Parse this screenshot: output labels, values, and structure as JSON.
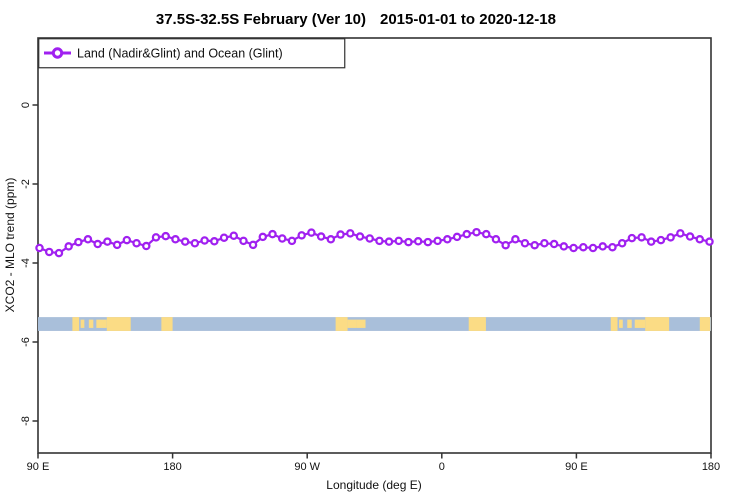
{
  "header": {
    "title_main": "37.5S-32.5S February (Ver 10)",
    "title_dates": "2015-01-01 to 2020-12-18"
  },
  "legend": {
    "label": "Land (Nadir&Glint) and Ocean (Glint)",
    "marker": "open-circle-on-line"
  },
  "axes": {
    "y_label": "XCO2 - MLO trend (ppm)",
    "x_label": "Longitude (deg E)"
  },
  "colors": {
    "series": "#A020F0",
    "ocean": "#A9BFDA",
    "land": "#FBDC85",
    "axis": "#333333"
  },
  "map_strip": {
    "description": "world coastline band for latitude 37.5S-32.5S",
    "y_top_value": -5.37,
    "y_bottom_value": -5.72,
    "land_segments": [
      {
        "start": 113,
        "end": 117.5,
        "coverage": "full"
      },
      {
        "start": 118.5,
        "end": 121,
        "coverage": "partial"
      },
      {
        "start": 124,
        "end": 127,
        "coverage": "partial"
      },
      {
        "start": 129,
        "end": 136,
        "coverage": "partial"
      },
      {
        "start": 136,
        "end": 152,
        "coverage": "full"
      },
      {
        "start": 172.5,
        "end": 180,
        "coverage": "full"
      },
      {
        "start": 289,
        "end": 297,
        "coverage": "full"
      },
      {
        "start": 297,
        "end": 303,
        "coverage": "partial"
      },
      {
        "start": 303,
        "end": 309,
        "coverage": "partial"
      },
      {
        "start": 378,
        "end": 389.5,
        "coverage": "full"
      },
      {
        "start": 473,
        "end": 477.5,
        "coverage": "full"
      },
      {
        "start": 478.5,
        "end": 481,
        "coverage": "partial"
      },
      {
        "start": 484,
        "end": 487,
        "coverage": "partial"
      },
      {
        "start": 489,
        "end": 496,
        "coverage": "partial"
      },
      {
        "start": 496,
        "end": 512,
        "coverage": "full"
      },
      {
        "start": 532.5,
        "end": 539.5,
        "coverage": "full"
      }
    ]
  },
  "chart_data": {
    "type": "line",
    "title": "37.5S-32.5S February (Ver 10)  2015-01-01 to 2020-12-18",
    "xlabel": "Longitude (deg E)",
    "ylabel": "XCO2 - MLO trend (ppm)",
    "xlim": [
      90,
      540
    ],
    "ylim": [
      -8.8,
      1.7
    ],
    "grid": false,
    "legend_position": "top-left",
    "x_tick_positions": [
      90,
      180,
      270,
      360,
      450,
      540
    ],
    "x_tick_labels": [
      "90 E",
      "180",
      "90 W",
      "0",
      "90 E",
      "180"
    ],
    "y_tick_positions": [
      0,
      -2,
      -4,
      -6,
      -8
    ],
    "series": [
      {
        "name": "Land (Nadir&Glint) and Ocean (Glint)",
        "marker": "open-circle",
        "color": "#A020F0",
        "x": [
          91.0,
          97.5,
          104.0,
          110.5,
          117.0,
          123.4,
          129.9,
          136.4,
          142.9,
          149.4,
          155.9,
          162.4,
          168.9,
          175.4,
          181.9,
          188.4,
          194.9,
          201.4,
          207.9,
          214.4,
          220.9,
          227.4,
          233.8,
          240.3,
          246.8,
          253.3,
          259.8,
          266.3,
          272.8,
          279.3,
          285.8,
          292.3,
          298.8,
          305.3,
          311.8,
          318.3,
          324.7,
          331.2,
          337.7,
          344.2,
          350.7,
          357.2,
          363.7,
          370.2,
          376.7,
          383.2,
          389.7,
          396.2,
          402.7,
          409.2,
          415.6,
          422.1,
          428.6,
          435.1,
          441.6,
          448.1,
          454.6,
          461.1,
          467.6,
          474.1,
          480.6,
          487.1,
          493.6,
          500.0,
          506.5,
          513.0,
          519.5,
          526.0,
          532.5,
          539.0
        ],
        "values": [
          -3.62,
          -3.72,
          -3.75,
          -3.58,
          -3.47,
          -3.4,
          -3.52,
          -3.46,
          -3.54,
          -3.42,
          -3.5,
          -3.57,
          -3.35,
          -3.32,
          -3.4,
          -3.46,
          -3.5,
          -3.43,
          -3.45,
          -3.36,
          -3.31,
          -3.44,
          -3.54,
          -3.34,
          -3.27,
          -3.38,
          -3.44,
          -3.3,
          -3.23,
          -3.33,
          -3.4,
          -3.28,
          -3.25,
          -3.33,
          -3.38,
          -3.44,
          -3.46,
          -3.44,
          -3.47,
          -3.45,
          -3.47,
          -3.44,
          -3.4,
          -3.34,
          -3.27,
          -3.22,
          -3.27,
          -3.4,
          -3.55,
          -3.4,
          -3.5,
          -3.55,
          -3.5,
          -3.52,
          -3.58,
          -3.62,
          -3.6,
          -3.62,
          -3.58,
          -3.6,
          -3.5,
          -3.37,
          -3.35,
          -3.46,
          -3.42,
          -3.35,
          -3.25,
          -3.33,
          -3.4,
          -3.46
        ]
      }
    ]
  }
}
